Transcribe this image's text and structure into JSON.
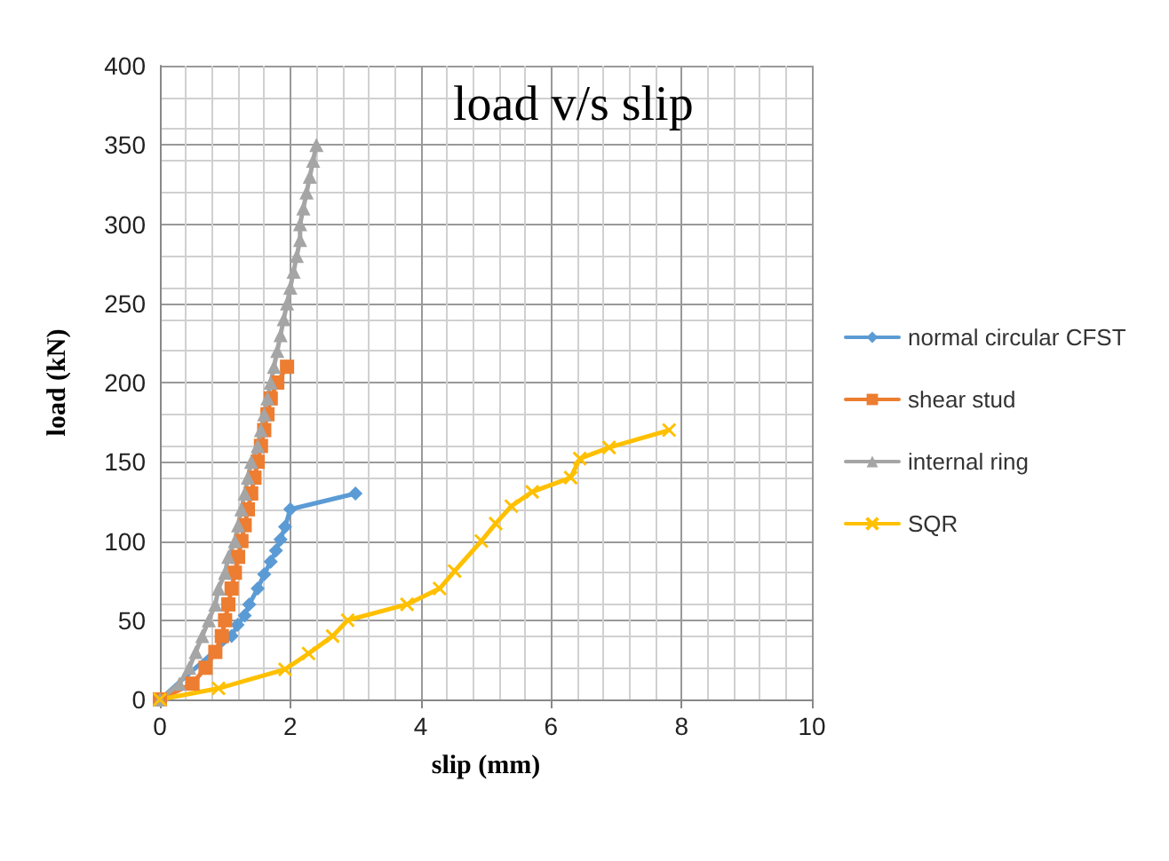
{
  "chart_data": {
    "type": "line",
    "title": "load v/s slip",
    "xlabel": "slip (mm)",
    "ylabel": "load (kN)",
    "xlim": [
      0,
      10
    ],
    "xticks": [
      0,
      2,
      4,
      6,
      8,
      10
    ],
    "ylim": [
      0,
      400
    ],
    "yticks": [
      0,
      50,
      100,
      150,
      200,
      250,
      300,
      350,
      400
    ],
    "grid": true,
    "legend": "right",
    "line_style": "solid",
    "series": [
      {
        "name": "normal circular CFST",
        "color": "#5b9bd5",
        "marker": "diamond",
        "x": [
          0,
          1.1,
          1.19,
          1.3,
          1.37,
          1.5,
          1.6,
          1.7,
          1.78,
          1.85,
          1.92,
          2.0,
          3.0
        ],
        "values": [
          0,
          40,
          47,
          53,
          60,
          70,
          79,
          87,
          94,
          101,
          109,
          120,
          130
        ]
      },
      {
        "name": "shear stud",
        "color": "#ed7d31",
        "marker": "square",
        "x": [
          0,
          0.5,
          0.7,
          0.85,
          0.95,
          1.0,
          1.05,
          1.1,
          1.15,
          1.2,
          1.25,
          1.3,
          1.35,
          1.4,
          1.45,
          1.5,
          1.55,
          1.6,
          1.65,
          1.7,
          1.8,
          1.95
        ],
        "values": [
          0,
          10,
          20,
          30,
          40,
          50,
          60,
          70,
          80,
          90,
          100,
          110,
          120,
          130,
          140,
          150,
          160,
          170,
          180,
          190,
          200,
          210
        ]
      },
      {
        "name": "internal ring",
        "color": "#a5a5a5",
        "marker": "triangle",
        "x": [
          0,
          0.3,
          0.45,
          0.55,
          0.65,
          0.75,
          0.85,
          0.9,
          1.0,
          1.05,
          1.15,
          1.2,
          1.25,
          1.3,
          1.35,
          1.4,
          1.5,
          1.55,
          1.6,
          1.65,
          1.7,
          1.75,
          1.8,
          1.85,
          1.9,
          1.95,
          2.0,
          2.05,
          2.1,
          2.15,
          2.15,
          2.2,
          2.25,
          2.3,
          2.35,
          2.4
        ],
        "values": [
          0,
          10,
          20,
          30,
          40,
          50,
          60,
          70,
          80,
          90,
          100,
          110,
          120,
          130,
          140,
          150,
          160,
          170,
          180,
          190,
          200,
          210,
          220,
          230,
          240,
          250,
          260,
          270,
          280,
          290,
          300,
          310,
          320,
          330,
          340,
          350
        ]
      },
      {
        "name": "SQR",
        "color": "#ffc000",
        "marker": "cross",
        "x": [
          0,
          0.9,
          1.92,
          2.28,
          2.65,
          2.88,
          3.79,
          4.29,
          4.52,
          4.93,
          5.15,
          5.39,
          5.71,
          6.3,
          6.44,
          6.89,
          7.81
        ],
        "values": [
          0,
          7,
          19,
          29,
          40,
          50,
          60,
          70,
          81,
          100,
          111,
          122,
          131,
          140,
          152,
          159,
          170
        ]
      }
    ]
  }
}
